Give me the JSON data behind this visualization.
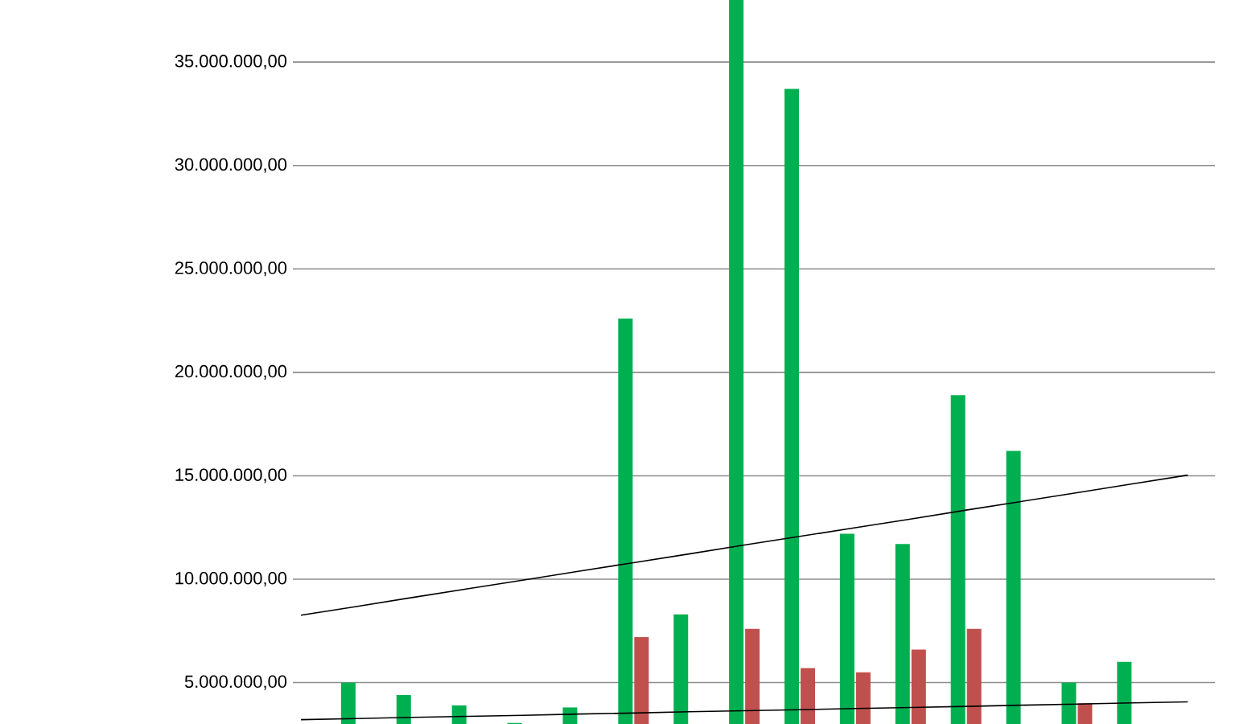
{
  "chart_data": {
    "type": "bar",
    "categories": [
      null,
      null,
      null,
      null,
      null,
      null,
      null,
      null,
      null,
      null,
      null,
      null,
      null,
      null,
      null,
      null,
      null
    ],
    "series": [
      {
        "color": "#00b050",
        "values": [
          null,
          5000000,
          4400000,
          3900000,
          3050000,
          3800000,
          22600000,
          8300000,
          38000000,
          33700000,
          12200000,
          11700000,
          18900000,
          16200000,
          5000000,
          6000000,
          null
        ]
      },
      {
        "color": "#c0504d",
        "values": [
          null,
          null,
          null,
          null,
          null,
          null,
          7200000,
          null,
          7600000,
          5700000,
          5500000,
          6600000,
          7600000,
          null,
          4000000,
          null,
          null
        ]
      },
      {
        "type": "line",
        "color": "#000000",
        "values": [
          8260000,
          8680000,
          9110000,
          9530000,
          9950000,
          10380000,
          10800000,
          11220000,
          11650000,
          12070000,
          12490000,
          12910000,
          13340000,
          13760000,
          14180000,
          14610000,
          15030000
        ]
      },
      {
        "type": "line",
        "color": "#000000",
        "values": [
          3210000,
          3260000,
          3320000,
          3370000,
          3420000,
          3480000,
          3530000,
          3590000,
          3640000,
          3690000,
          3750000,
          3800000,
          3850000,
          3910000,
          3960000,
          4020000,
          4070000
        ]
      }
    ],
    "ylim": [
      3000000,
      38000000
    ],
    "yticks": [
      {
        "value": 5000000,
        "label": "5.000.000,00"
      },
      {
        "value": 10000000,
        "label": "10.000.000,00"
      },
      {
        "value": 15000000,
        "label": "15.000.000,00"
      },
      {
        "value": 20000000,
        "label": "20.000.000,00"
      },
      {
        "value": 25000000,
        "label": "25.000.000,00"
      },
      {
        "value": 30000000,
        "label": "30.000.000,00"
      },
      {
        "value": 35000000,
        "label": "35.000.000,00"
      }
    ],
    "grid": "y",
    "tick_labels": "y"
  }
}
